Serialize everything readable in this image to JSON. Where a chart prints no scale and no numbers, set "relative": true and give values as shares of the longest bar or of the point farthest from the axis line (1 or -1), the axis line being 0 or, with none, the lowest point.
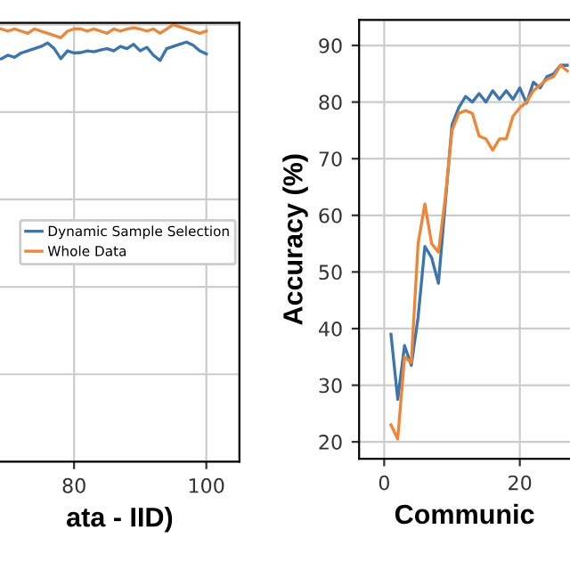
{
  "chart_data": [
    {
      "type": "line",
      "relative": true,
      "xlabel": "ata - IID)",
      "xlim": [
        68.8,
        105
      ],
      "xticks": [
        80,
        100
      ],
      "tick_labels": "x",
      "grid": true,
      "legend": "center right",
      "x": [
        69,
        70,
        71,
        72,
        73,
        74,
        75,
        76,
        77,
        78,
        79,
        80,
        81,
        82,
        83,
        84,
        85,
        86,
        87,
        88,
        89,
        90,
        91,
        92,
        93,
        94,
        95,
        96,
        97,
        98,
        99,
        100
      ],
      "series": [
        {
          "name": "Dynamic Sample Selection",
          "color": "#3b75af",
          "values": [
            0.922,
            0.93,
            0.925,
            0.935,
            0.94,
            0.945,
            0.95,
            0.958,
            0.945,
            0.922,
            0.94,
            0.935,
            0.936,
            0.94,
            0.938,
            0.942,
            0.945,
            0.94,
            0.95,
            0.945,
            0.955,
            0.94,
            0.948,
            0.93,
            0.918,
            0.945,
            0.95,
            0.955,
            0.96,
            0.953,
            0.94,
            0.933
          ]
        },
        {
          "name": "Whole Data",
          "color": "#ef8636",
          "values": [
            0.99,
            0.985,
            0.99,
            0.985,
            0.98,
            0.99,
            0.985,
            0.98,
            0.975,
            0.97,
            0.985,
            0.99,
            0.99,
            0.985,
            0.99,
            0.985,
            0.98,
            0.99,
            0.985,
            0.99,
            0.993,
            0.99,
            0.985,
            0.99,
            0.98,
            0.99,
            1.0,
            0.995,
            0.99,
            0.985,
            0.98,
            0.985
          ]
        }
      ]
    },
    {
      "type": "line",
      "xlabel": "Communic",
      "ylabel": "Accuracy (%)",
      "xlim": [
        -3.7,
        27.4
      ],
      "xticks": [
        0,
        20
      ],
      "ylim": [
        17,
        94.5
      ],
      "yticks": [
        20,
        30,
        40,
        50,
        60,
        70,
        80,
        90
      ],
      "grid": true,
      "x": [
        1,
        2,
        3,
        4,
        5,
        6,
        7,
        8,
        9,
        10,
        11,
        12,
        13,
        14,
        15,
        16,
        17,
        18,
        19,
        20,
        21,
        22,
        23,
        24,
        25,
        26,
        27
      ],
      "series": [
        {
          "color": "#3b75af",
          "values": [
            39,
            27.5,
            37,
            33.5,
            42,
            54.5,
            52.5,
            48,
            62,
            76,
            79,
            81,
            80,
            81.5,
            80,
            82,
            80.5,
            82,
            80.5,
            82.5,
            79.8,
            83.5,
            82.5,
            84.5,
            85,
            86.5,
            86.5
          ]
        },
        {
          "color": "#ef8636",
          "values": [
            23,
            20.5,
            35,
            34,
            55,
            62,
            55,
            53.5,
            63,
            75,
            78,
            78.5,
            78,
            74,
            73.5,
            71.5,
            73.5,
            73.5,
            77.5,
            79,
            80,
            82,
            83,
            84,
            84.5,
            86.5,
            85.5
          ]
        }
      ]
    }
  ]
}
